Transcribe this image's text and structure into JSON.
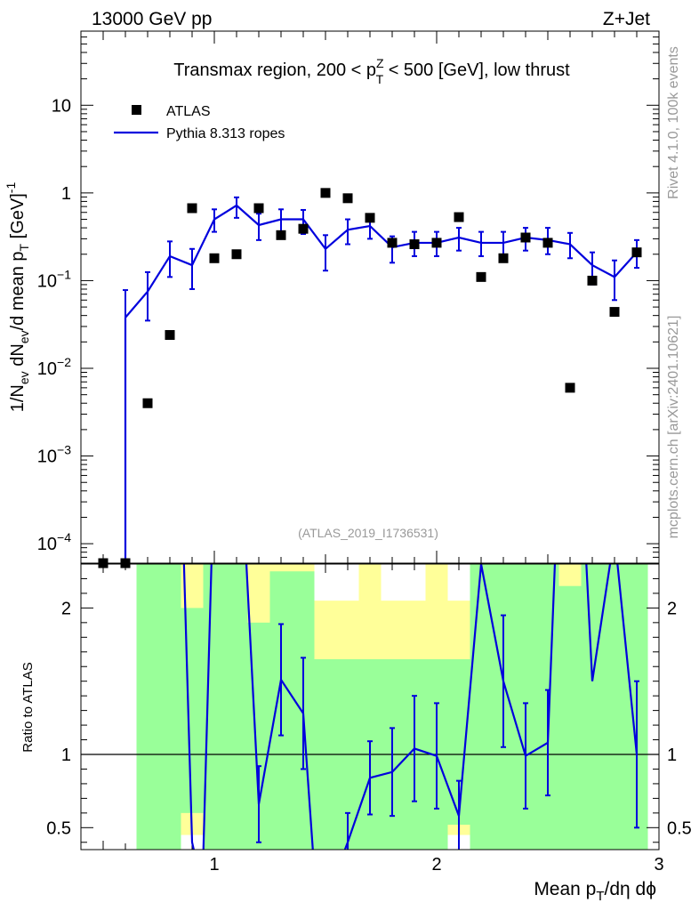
{
  "header": {
    "left": "13000 GeV pp",
    "right": "Z+Jet"
  },
  "side": {
    "rivet": "Rivet 4.1.0,  100k events",
    "mcplots": "mcplots.cern.ch [arXiv:2401.10621]"
  },
  "chart_data": [
    {
      "type": "scatter",
      "title_parts": {
        "pre": "Transmax region, 200 < p",
        "sup": "Z",
        "sub": "T",
        "post": " < 500 [GeV], low thrust"
      },
      "analysis_id": "(ATLAS_2019_I1736531)",
      "ylabel": "1/N_ev dN_ev/d mean p_T [GeV]^-1",
      "ylabel_parts": {
        "a": "1/N",
        "a_sub": "ev",
        "b": " dN",
        "b_sub": "ev",
        "c": "/d mean p",
        "c_sub": "T",
        "d": " [GeV]",
        "d_sup": "-1"
      },
      "yscale": "log",
      "ylim": [
        6e-05,
        70
      ],
      "xlim": [
        0.4,
        3.0
      ],
      "yticks": [
        {
          "v": 10,
          "label": "10",
          "exp": ""
        },
        {
          "v": 1,
          "label": "1",
          "exp": ""
        },
        {
          "v": 0.1,
          "label": "10",
          "exp": "−1"
        },
        {
          "v": 0.01,
          "label": "10",
          "exp": "−2"
        },
        {
          "v": 0.001,
          "label": "10",
          "exp": "−3"
        },
        {
          "v": 0.0001,
          "label": "10",
          "exp": "−4"
        }
      ],
      "legend": {
        "position": "top-left",
        "entries": [
          {
            "name": "ATLAS",
            "style": "marker"
          },
          {
            "name": "Pythia 8.313 ropes",
            "style": "line"
          }
        ]
      },
      "series": [
        {
          "name": "ATLAS",
          "color": "#000000",
          "x": [
            0.5,
            0.6,
            0.7,
            0.8,
            0.9,
            1.0,
            1.1,
            1.2,
            1.3,
            1.4,
            1.5,
            1.6,
            1.7,
            1.8,
            1.9,
            2.0,
            2.1,
            2.2,
            2.3,
            2.4,
            2.5,
            2.6,
            2.7,
            2.8,
            2.9
          ],
          "y": [
            5e-05,
            5e-05,
            0.004,
            0.024,
            0.67,
            0.18,
            0.2,
            0.67,
            0.33,
            0.39,
            1.0,
            0.87,
            0.52,
            0.27,
            0.26,
            0.27,
            0.53,
            0.11,
            0.18,
            0.31,
            0.27,
            0.006,
            0.1,
            0.044,
            0.21
          ]
        },
        {
          "name": "Pythia 8.313 ropes",
          "color": "#0000dd",
          "x": [
            0.6,
            0.7,
            0.8,
            0.9,
            1.0,
            1.1,
            1.2,
            1.3,
            1.4,
            1.5,
            1.6,
            1.7,
            1.8,
            1.9,
            2.0,
            2.1,
            2.2,
            2.3,
            2.4,
            2.5,
            2.6,
            2.7,
            2.8,
            2.9
          ],
          "y": [
            0.038,
            0.075,
            0.19,
            0.15,
            0.5,
            0.72,
            0.43,
            0.5,
            0.5,
            0.23,
            0.38,
            0.42,
            0.24,
            0.27,
            0.27,
            0.31,
            0.27,
            0.27,
            0.31,
            0.29,
            0.26,
            0.15,
            0.11,
            0.21
          ],
          "err_lo": [
            0.03799,
            0.04,
            0.08,
            0.07,
            0.14,
            0.2,
            0.14,
            0.16,
            0.16,
            0.1,
            0.12,
            0.12,
            0.08,
            0.08,
            0.08,
            0.09,
            0.08,
            0.08,
            0.09,
            0.09,
            0.08,
            0.06,
            0.05,
            0.07
          ],
          "err_hi": [
            0.04,
            0.05,
            0.09,
            0.08,
            0.15,
            0.17,
            0.15,
            0.15,
            0.14,
            0.1,
            0.12,
            0.12,
            0.08,
            0.09,
            0.09,
            0.09,
            0.09,
            0.09,
            0.09,
            0.11,
            0.09,
            0.06,
            0.06,
            0.08
          ]
        }
      ]
    },
    {
      "type": "line",
      "ylabel": "Ratio to ATLAS",
      "xlabel_parts": {
        "a": "Mean p",
        "a_sub": "T",
        "b": "/dη dϕ"
      },
      "xlim": [
        0.4,
        3.0
      ],
      "ylim": [
        0.35,
        2.3
      ],
      "xticks": [
        {
          "v": 1,
          "label": "1"
        },
        {
          "v": 2,
          "label": "2"
        },
        {
          "v": 3,
          "label": "3"
        }
      ],
      "yticks": [
        {
          "v": 0.5,
          "label": "0.5"
        },
        {
          "v": 1,
          "label": "1"
        },
        {
          "v": 2,
          "label": "2"
        }
      ],
      "reference_line": 1.0,
      "bands": {
        "bins": [
          [
            0.65,
            0.85
          ],
          [
            0.85,
            0.95
          ],
          [
            0.95,
            1.05
          ],
          [
            1.05,
            1.15
          ],
          [
            1.15,
            1.25
          ],
          [
            1.25,
            1.35
          ],
          [
            1.35,
            1.45
          ],
          [
            1.45,
            1.55
          ],
          [
            1.55,
            1.65
          ],
          [
            1.65,
            1.75
          ],
          [
            1.75,
            1.85
          ],
          [
            1.85,
            1.95
          ],
          [
            1.95,
            2.05
          ],
          [
            2.05,
            2.15
          ],
          [
            2.15,
            2.25
          ],
          [
            2.25,
            2.35
          ],
          [
            2.35,
            2.45
          ],
          [
            2.45,
            2.55
          ],
          [
            2.55,
            2.65
          ],
          [
            2.65,
            2.75
          ],
          [
            2.75,
            2.85
          ],
          [
            2.85,
            2.95
          ]
        ],
        "green_lo": [
          0.2,
          0.6,
          0.2,
          0.2,
          0.2,
          0.2,
          0.2,
          0.2,
          0.2,
          0.2,
          0.2,
          0.2,
          0.2,
          0.52,
          0.2,
          0.2,
          0.2,
          0.2,
          0.2,
          0.2,
          0.2,
          0.2
        ],
        "green_hi": [
          3,
          2.0,
          2.5,
          2.4,
          1.9,
          2.25,
          2.25,
          1.65,
          1.65,
          1.65,
          1.65,
          1.65,
          1.65,
          1.65,
          3,
          3,
          3,
          2.3,
          2.15,
          3,
          3,
          2.3
        ],
        "yellow_lo": [
          0.2,
          0.45,
          0.2,
          0.2,
          0.2,
          0.2,
          0.2,
          0.45,
          0.45,
          0.2,
          0.2,
          0.2,
          0.2,
          0.45,
          0.2,
          0.2,
          0.2,
          0.2,
          0.2,
          0.2,
          0.2,
          0.2
        ],
        "yellow_hi": [
          3,
          2.3,
          3,
          3,
          3,
          3,
          3,
          2.05,
          2.05,
          3,
          2.05,
          2.05,
          3,
          2.05,
          3,
          3,
          3,
          3,
          3,
          3,
          3,
          2.05
        ]
      },
      "series": [
        {
          "name": "Pythia 8.313 ropes / ATLAS",
          "color": "#0000dd",
          "x": [
            0.85,
            0.9,
            0.93,
            0.95,
            1.0,
            1.1,
            1.2,
            1.3,
            1.4,
            1.45,
            1.55,
            1.6,
            1.7,
            1.8,
            1.9,
            2.0,
            2.1,
            2.2,
            2.3,
            2.4,
            2.5,
            2.55,
            2.65,
            2.7,
            2.8,
            2.9
          ],
          "y": [
            3.0,
            0.4,
            0.2,
            0.3,
            3.0,
            3.6,
            0.66,
            1.51,
            1.28,
            0.2,
            0.2,
            0.4,
            0.84,
            0.88,
            1.04,
            0.99,
            0.58,
            2.3,
            1.5,
            0.99,
            1.08,
            3.0,
            3.0,
            1.5,
            2.5,
            1.0
          ],
          "err": [
            0,
            0,
            0,
            0,
            0,
            0,
            0.26,
            0.38,
            0.38,
            0,
            0,
            0.2,
            0.25,
            0.3,
            0.36,
            0.36,
            0.24,
            0,
            0.45,
            0.36,
            0.36,
            0,
            0,
            0,
            0,
            0.5
          ]
        }
      ]
    }
  ]
}
